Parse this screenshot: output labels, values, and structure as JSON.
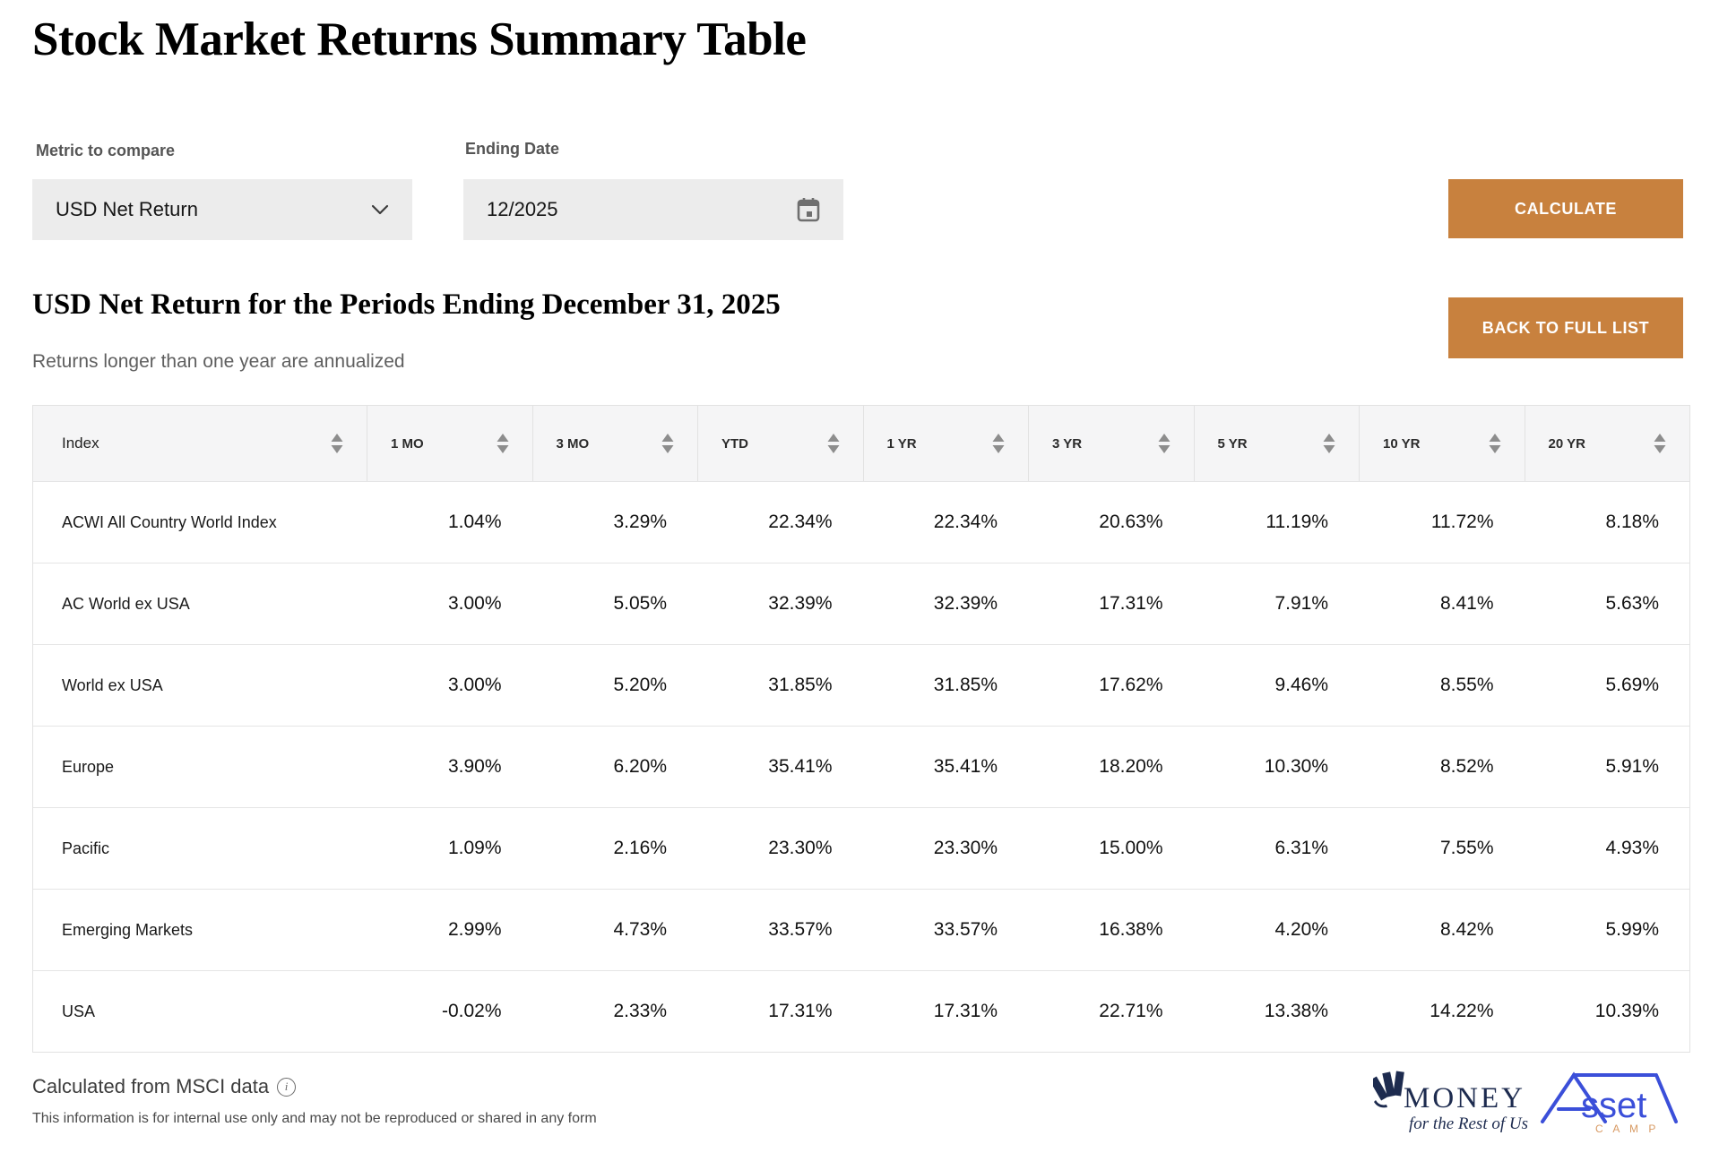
{
  "page": {
    "title": "Stock Market Returns Summary Table"
  },
  "controls": {
    "metric": {
      "label": "Metric to compare",
      "value": "USD Net Return",
      "icon": "chevron-down-icon"
    },
    "ending_date": {
      "label": "Ending Date",
      "value": "12/2025",
      "icon": "calendar-icon"
    },
    "calculate_label": "CALCULATE",
    "back_label": "BACK TO FULL LIST"
  },
  "section": {
    "heading": "USD Net Return for the Periods Ending December 31, 2025",
    "note": "Returns longer than one year are annualized"
  },
  "table": {
    "columns": [
      "Index",
      "1 MO",
      "3 MO",
      "YTD",
      "1 YR",
      "3 YR",
      "5 YR",
      "10 YR",
      "20 YR"
    ],
    "sort_icon": "sort-arrows-icon",
    "rows": [
      {
        "index": "ACWI All Country World Index",
        "values": [
          "1.04%",
          "3.29%",
          "22.34%",
          "22.34%",
          "20.63%",
          "11.19%",
          "11.72%",
          "8.18%"
        ]
      },
      {
        "index": "AC World ex USA",
        "values": [
          "3.00%",
          "5.05%",
          "32.39%",
          "32.39%",
          "17.31%",
          "7.91%",
          "8.41%",
          "5.63%"
        ]
      },
      {
        "index": "World ex USA",
        "values": [
          "3.00%",
          "5.20%",
          "31.85%",
          "31.85%",
          "17.62%",
          "9.46%",
          "8.55%",
          "5.69%"
        ]
      },
      {
        "index": "Europe",
        "values": [
          "3.90%",
          "6.20%",
          "35.41%",
          "35.41%",
          "18.20%",
          "10.30%",
          "8.52%",
          "5.91%"
        ]
      },
      {
        "index": "Pacific",
        "values": [
          "1.09%",
          "2.16%",
          "23.30%",
          "23.30%",
          "15.00%",
          "6.31%",
          "7.55%",
          "4.93%"
        ]
      },
      {
        "index": "Emerging Markets",
        "values": [
          "2.99%",
          "4.73%",
          "33.57%",
          "33.57%",
          "16.38%",
          "4.20%",
          "8.42%",
          "5.99%"
        ]
      },
      {
        "index": "USA",
        "values": [
          "-0.02%",
          "2.33%",
          "17.31%",
          "17.31%",
          "22.71%",
          "13.38%",
          "14.22%",
          "10.39%"
        ]
      }
    ]
  },
  "footer": {
    "source": "Calculated from MSCI data",
    "info_symbol": "i",
    "info_icon": "info-icon",
    "disclaimer": "This information is for internal use only and may not be reproduced or shared in any form"
  },
  "logos": {
    "money": {
      "name": "MONEY",
      "tagline": "for the Rest of Us"
    },
    "assetcamp": {
      "word_rest": "sset",
      "camp": "C A M P"
    }
  },
  "colors": {
    "accent_orange": "#c8813e",
    "header_gray": "#f5f5f6",
    "control_gray": "#ececec",
    "money_navy": "#1d2b4f",
    "assetcamp_blue": "#3b4fd9",
    "assetcamp_tan": "#d89a63"
  }
}
